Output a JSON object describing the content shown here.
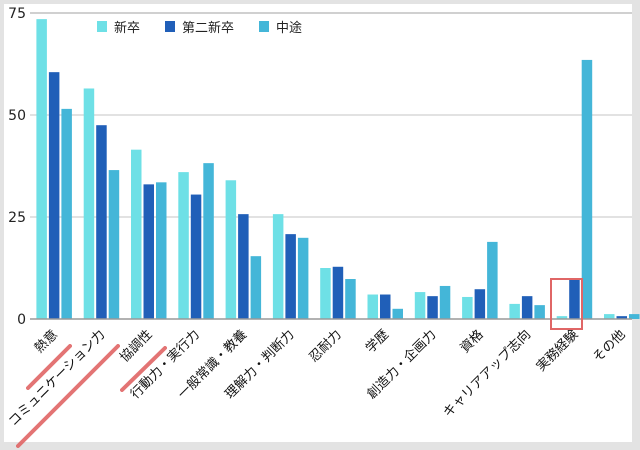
{
  "chart_data": {
    "type": "bar",
    "categories": [
      "熱意",
      "コミュニケーション力",
      "協調性",
      "行動力・実行力",
      "一般常識・教養",
      "理解力・判断力",
      "忍耐力",
      "学歴",
      "創造力・企画力",
      "資格",
      "キャリアアップ志向",
      "実務経験",
      "その他"
    ],
    "series": [
      {
        "name": "新卒",
        "color": "#6ee0e6",
        "values": [
          73.5,
          56.5,
          41.5,
          36,
          34,
          25.7,
          12.5,
          6,
          6.6,
          5.4,
          3.7,
          0.7,
          1.2
        ]
      },
      {
        "name": "第二新卒",
        "color": "#205fb8",
        "values": [
          60.5,
          47.5,
          33,
          30.5,
          25.7,
          20.8,
          12.8,
          6,
          5.6,
          7.3,
          5.6,
          9.6,
          0.7
        ]
      },
      {
        "name": "中途",
        "color": "#44b6d8",
        "values": [
          51.5,
          36.5,
          33.5,
          38.2,
          15.4,
          19.9,
          9.8,
          2.5,
          8.1,
          18.9,
          3.4,
          63.5,
          1.2
        ]
      }
    ],
    "yticks": [
      0,
      25,
      50,
      75
    ],
    "ylim": [
      0,
      75
    ],
    "grid": true,
    "legend": "top",
    "highlights": {
      "underlined_categories": [
        "熱意",
        "コミュニケーション力",
        "協調性"
      ],
      "boxed_category": "実務経験",
      "highlight_color": "#e06666"
    }
  }
}
